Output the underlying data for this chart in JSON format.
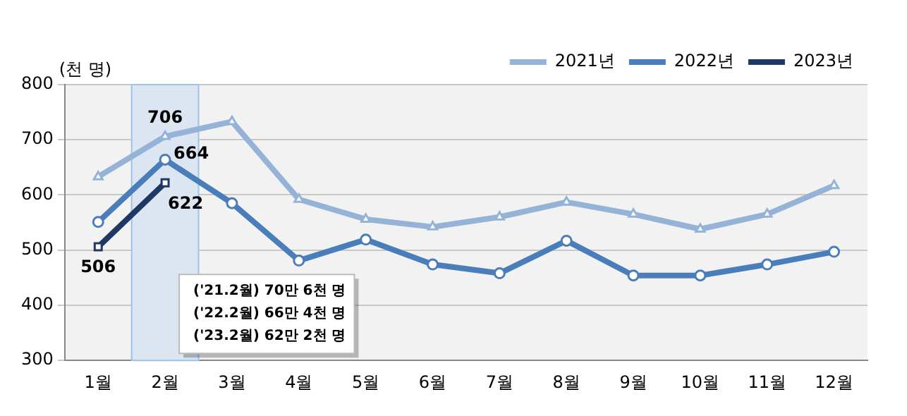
{
  "chart_data": {
    "type": "line",
    "ylabel": "(천 명)",
    "categories": [
      "1월",
      "2월",
      "3월",
      "4월",
      "5월",
      "6월",
      "7월",
      "8월",
      "9월",
      "10월",
      "11월",
      "12월"
    ],
    "series": [
      {
        "name": "2021년",
        "color": "#95b3d7",
        "marker": "triangle",
        "values": [
          633,
          706,
          733,
          592,
          556,
          542,
          560,
          587,
          565,
          538,
          565,
          617
        ],
        "value_labels": [
          null,
          "706",
          null,
          null,
          null,
          null,
          null,
          null,
          null,
          null,
          null,
          null
        ]
      },
      {
        "name": "2022년",
        "color": "#4a7ebb",
        "marker": "circle",
        "values": [
          551,
          664,
          585,
          481,
          519,
          474,
          458,
          517,
          454,
          454,
          474,
          497
        ],
        "value_labels": [
          null,
          "664",
          null,
          null,
          null,
          null,
          null,
          null,
          null,
          null,
          null,
          null
        ]
      },
      {
        "name": "2023년",
        "color": "#1f3864",
        "marker": "square",
        "values": [
          506,
          622,
          null,
          null,
          null,
          null,
          null,
          null,
          null,
          null,
          null,
          null
        ],
        "value_labels": [
          "506",
          "622",
          null,
          null,
          null,
          null,
          null,
          null,
          null,
          null,
          null,
          null
        ]
      }
    ],
    "ylim": [
      300,
      800
    ],
    "yticks": [
      300,
      400,
      500,
      600,
      700,
      800
    ],
    "grid": "y",
    "legend": "top right",
    "bands": [
      {
        "axis": "x",
        "from": "2월",
        "to": "2월",
        "color": "#dce6f2"
      }
    ],
    "annotations": [
      "('21.2월) 70만 6천 명",
      "('22.2월) 66만 4천 명",
      "('23.2월) 62만 2천 명"
    ]
  }
}
